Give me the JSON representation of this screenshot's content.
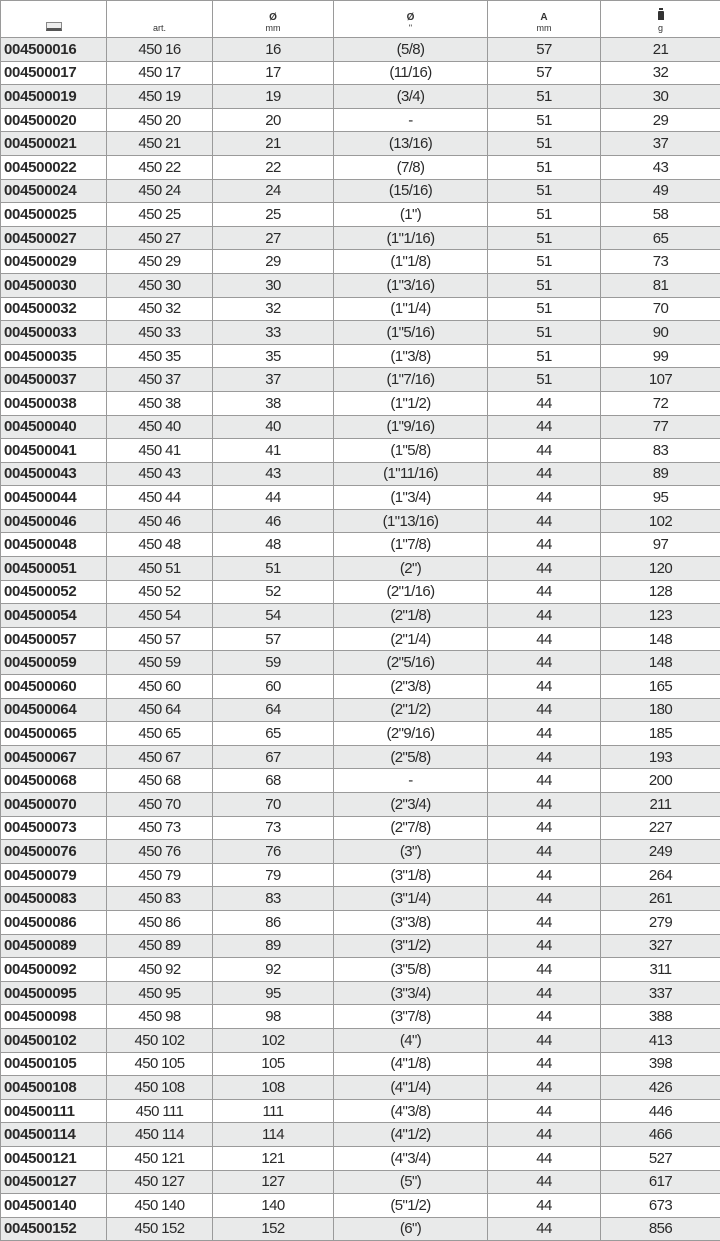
{
  "header": {
    "code_icon": "computer-icon",
    "art": "art.",
    "diam_mm_symbol": "Ø",
    "diam_mm_unit": "mm",
    "diam_inch_symbol": "Ø",
    "diam_inch_unit": "\"",
    "a_symbol": "A",
    "a_unit": "mm",
    "weight_icon": "weight-icon",
    "weight_unit": "g"
  },
  "rows": [
    [
      "004500016",
      "450 16",
      "16",
      "(5/8)",
      "57",
      "21"
    ],
    [
      "004500017",
      "450 17",
      "17",
      "(11/16)",
      "57",
      "32"
    ],
    [
      "004500019",
      "450 19",
      "19",
      "(3/4)",
      "51",
      "30"
    ],
    [
      "004500020",
      "450 20",
      "20",
      "-",
      "51",
      "29"
    ],
    [
      "004500021",
      "450 21",
      "21",
      "(13/16)",
      "51",
      "37"
    ],
    [
      "004500022",
      "450 22",
      "22",
      "(7/8)",
      "51",
      "43"
    ],
    [
      "004500024",
      "450 24",
      "24",
      "(15/16)",
      "51",
      "49"
    ],
    [
      "004500025",
      "450 25",
      "25",
      "(1\")",
      "51",
      "58"
    ],
    [
      "004500027",
      "450 27",
      "27",
      "(1\"1/16)",
      "51",
      "65"
    ],
    [
      "004500029",
      "450 29",
      "29",
      "(1\"1/8)",
      "51",
      "73"
    ],
    [
      "004500030",
      "450 30",
      "30",
      "(1\"3/16)",
      "51",
      "81"
    ],
    [
      "004500032",
      "450 32",
      "32",
      "(1\"1/4)",
      "51",
      "70"
    ],
    [
      "004500033",
      "450 33",
      "33",
      "(1\"5/16)",
      "51",
      "90"
    ],
    [
      "004500035",
      "450 35",
      "35",
      "(1\"3/8)",
      "51",
      "99"
    ],
    [
      "004500037",
      "450 37",
      "37",
      "(1\"7/16)",
      "51",
      "107"
    ],
    [
      "004500038",
      "450 38",
      "38",
      "(1\"1/2)",
      "44",
      "72"
    ],
    [
      "004500040",
      "450 40",
      "40",
      "(1\"9/16)",
      "44",
      "77"
    ],
    [
      "004500041",
      "450 41",
      "41",
      "(1\"5/8)",
      "44",
      "83"
    ],
    [
      "004500043",
      "450 43",
      "43",
      "(1\"11/16)",
      "44",
      "89"
    ],
    [
      "004500044",
      "450 44",
      "44",
      "(1\"3/4)",
      "44",
      "95"
    ],
    [
      "004500046",
      "450 46",
      "46",
      "(1\"13/16)",
      "44",
      "102"
    ],
    [
      "004500048",
      "450 48",
      "48",
      "(1\"7/8)",
      "44",
      "97"
    ],
    [
      "004500051",
      "450 51",
      "51",
      "(2\")",
      "44",
      "120"
    ],
    [
      "004500052",
      "450 52",
      "52",
      "(2\"1/16)",
      "44",
      "128"
    ],
    [
      "004500054",
      "450 54",
      "54",
      "(2\"1/8)",
      "44",
      "123"
    ],
    [
      "004500057",
      "450 57",
      "57",
      "(2\"1/4)",
      "44",
      "148"
    ],
    [
      "004500059",
      "450 59",
      "59",
      "(2\"5/16)",
      "44",
      "148"
    ],
    [
      "004500060",
      "450 60",
      "60",
      "(2\"3/8)",
      "44",
      "165"
    ],
    [
      "004500064",
      "450 64",
      "64",
      "(2\"1/2)",
      "44",
      "180"
    ],
    [
      "004500065",
      "450 65",
      "65",
      "(2\"9/16)",
      "44",
      "185"
    ],
    [
      "004500067",
      "450 67",
      "67",
      "(2\"5/8)",
      "44",
      "193"
    ],
    [
      "004500068",
      "450 68",
      "68",
      "-",
      "44",
      "200"
    ],
    [
      "004500070",
      "450 70",
      "70",
      "(2\"3/4)",
      "44",
      "211"
    ],
    [
      "004500073",
      "450 73",
      "73",
      "(2\"7/8)",
      "44",
      "227"
    ],
    [
      "004500076",
      "450 76",
      "76",
      "(3\")",
      "44",
      "249"
    ],
    [
      "004500079",
      "450 79",
      "79",
      "(3\"1/8)",
      "44",
      "264"
    ],
    [
      "004500083",
      "450 83",
      "83",
      "(3\"1/4)",
      "44",
      "261"
    ],
    [
      "004500086",
      "450 86",
      "86",
      "(3\"3/8)",
      "44",
      "279"
    ],
    [
      "004500089",
      "450 89",
      "89",
      "(3\"1/2)",
      "44",
      "327"
    ],
    [
      "004500092",
      "450 92",
      "92",
      "(3\"5/8)",
      "44",
      "311"
    ],
    [
      "004500095",
      "450 95",
      "95",
      "(3\"3/4)",
      "44",
      "337"
    ],
    [
      "004500098",
      "450 98",
      "98",
      "(3\"7/8)",
      "44",
      "388"
    ],
    [
      "004500102",
      "450 102",
      "102",
      "(4\")",
      "44",
      "413"
    ],
    [
      "004500105",
      "450 105",
      "105",
      "(4\"1/8)",
      "44",
      "398"
    ],
    [
      "004500108",
      "450 108",
      "108",
      "(4\"1/4)",
      "44",
      "426"
    ],
    [
      "004500111",
      "450 111",
      "111",
      "(4\"3/8)",
      "44",
      "446"
    ],
    [
      "004500114",
      "450 114",
      "114",
      "(4\"1/2)",
      "44",
      "466"
    ],
    [
      "004500121",
      "450 121",
      "121",
      "(4\"3/4)",
      "44",
      "527"
    ],
    [
      "004500127",
      "450 127",
      "127",
      "(5\")",
      "44",
      "617"
    ],
    [
      "004500140",
      "450 140",
      "140",
      "(5\"1/2)",
      "44",
      "673"
    ],
    [
      "004500152",
      "450 152",
      "152",
      "(6\")",
      "44",
      "856"
    ]
  ]
}
